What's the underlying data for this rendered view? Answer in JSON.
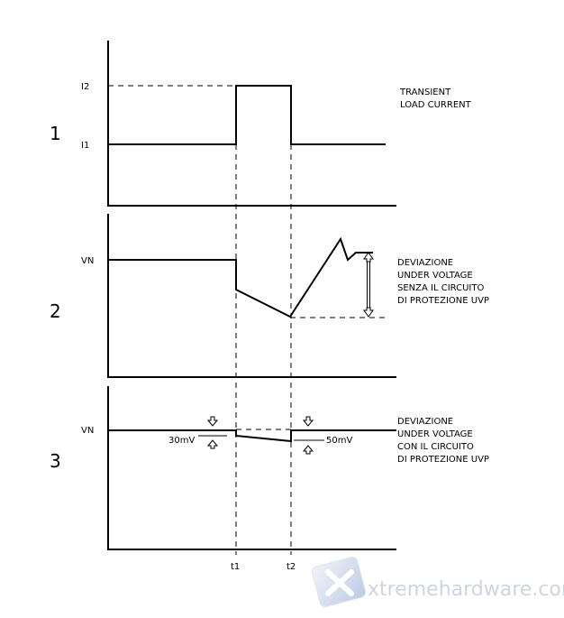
{
  "panels": [
    {
      "number": "1",
      "levels": [
        "I2",
        "I1"
      ],
      "description": [
        "TRANSIENT",
        "LOAD CURRENT"
      ]
    },
    {
      "number": "2",
      "levels": [
        "VN"
      ],
      "description": [
        "DEVIAZIONE",
        "UNDER VOLTAGE",
        "SENZA IL CIRCUITO",
        "DI PROTEZIONE UVP"
      ]
    },
    {
      "number": "3",
      "levels": [
        "VN"
      ],
      "description": [
        "DEVIAZIONE",
        "UNDER VOLTAGE",
        "CON IL CIRCUITO",
        "DI PROTEZIONE UVP"
      ],
      "annotations": [
        "30mV",
        "50mV"
      ]
    }
  ],
  "time_markers": [
    "t1",
    "t2"
  ],
  "watermark": "xtremehardware.com"
}
